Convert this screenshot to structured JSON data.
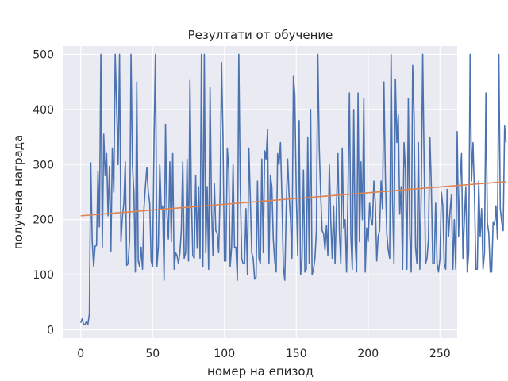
{
  "chart_data": {
    "type": "line",
    "title": "Резултати от обучение",
    "xlabel": "номер на епизод",
    "ylabel": "получена награда",
    "xlim": [
      -12,
      262
    ],
    "ylim": [
      -15,
      515
    ],
    "xticks": [
      0,
      50,
      100,
      150,
      200,
      250
    ],
    "yticks": [
      0,
      100,
      200,
      300,
      400,
      500
    ],
    "grid": true,
    "background": "#eaeaf2",
    "series": [
      {
        "color": "#4c72b0",
        "values": [
          13,
          20,
          10,
          10,
          15,
          10,
          29,
          303,
          160,
          115,
          152,
          153,
          288,
          187,
          500,
          150,
          355,
          280,
          320,
          207,
          297,
          143,
          330,
          250,
          500,
          404,
          300,
          500,
          160,
          205,
          230,
          305,
          117,
          120,
          165,
          500,
          297,
          250,
          105,
          450,
          125,
          115,
          150,
          110,
          220,
          260,
          295,
          250,
          230,
          125,
          115,
          345,
          500,
          115,
          150,
          300,
          220,
          225,
          90,
          373,
          210,
          165,
          305,
          160,
          320,
          110,
          140,
          135,
          120,
          140,
          180,
          305,
          130,
          140,
          310,
          125,
          453,
          240,
          135,
          130,
          280,
          148,
          260,
          130,
          500,
          115,
          500,
          140,
          260,
          110,
          440,
          225,
          135,
          265,
          180,
          175,
          140,
          250,
          485,
          350,
          125,
          125,
          330,
          290,
          115,
          150,
          300,
          150,
          150,
          90,
          500,
          260,
          130,
          120,
          120,
          220,
          100,
          330,
          240,
          140,
          130,
          92,
          95,
          270,
          130,
          120,
          310,
          140,
          325,
          310,
          364,
          120,
          280,
          260,
          165,
          125,
          105,
          320,
          300,
          340,
          240,
          115,
          90,
          220,
          310,
          245,
          200,
          130,
          460,
          425,
          250,
          135,
          380,
          100,
          128,
          290,
          105,
          110,
          350,
          120,
          400,
          100,
          110,
          130,
          180,
          500,
          330,
          245,
          180,
          175,
          145,
          190,
          135,
          300,
          200,
          130,
          225,
          120,
          225,
          320,
          180,
          120,
          330,
          185,
          200,
          105,
          250,
          430,
          170,
          110,
          400,
          160,
          105,
          430,
          160,
          305,
          200,
          420,
          105,
          185,
          160,
          230,
          200,
          190,
          270,
          230,
          125,
          170,
          180,
          270,
          220,
          450,
          280,
          175,
          145,
          130,
          500,
          235,
          120,
          455,
          340,
          390,
          210,
          260,
          110,
          340,
          290,
          110,
          420,
          175,
          105,
          480,
          390,
          150,
          120,
          340,
          110,
          250,
          500,
          300,
          120,
          130,
          165,
          350,
          260,
          120,
          120,
          230,
          120,
          105,
          130,
          250,
          225,
          120,
          110,
          255,
          170,
          215,
          245,
          110,
          200,
          110,
          360,
          170,
          270,
          320,
          130,
          200,
          260,
          105,
          140,
          500,
          270,
          340,
          250,
          110,
          110,
          270,
          170,
          220,
          110,
          140,
          430,
          195,
          175,
          105,
          105,
          195,
          190,
          225,
          165,
          500,
          220,
          195,
          180,
          370,
          340
        ],
        "note_unused": ""
      },
      {
        "color": "#dd8452",
        "values": [
          207,
          269
        ]
      }
    ]
  }
}
